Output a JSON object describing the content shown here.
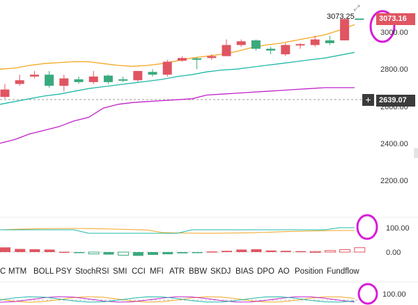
{
  "chart_data": {
    "type": "candlestick",
    "price_axis_ticks": [
      "3000.00",
      "2800.00",
      "2600.00",
      "2400.00",
      "2200.00"
    ],
    "last_price": "3073.16",
    "hover_price": "3073.25",
    "crosshair_price": "2639.07",
    "macd_axis_ticks": [
      "100.00",
      "0.00"
    ],
    "osc_axis_ticks": [
      "100.00"
    ],
    "candles": [
      {
        "o": 2690,
        "h": 2720,
        "l": 2640,
        "c": 2650
      },
      {
        "o": 2740,
        "h": 2770,
        "l": 2710,
        "c": 2720
      },
      {
        "o": 2770,
        "h": 2790,
        "l": 2750,
        "c": 2760
      },
      {
        "o": 2710,
        "h": 2790,
        "l": 2700,
        "c": 2770
      },
      {
        "o": 2750,
        "h": 2770,
        "l": 2680,
        "c": 2710
      },
      {
        "o": 2730,
        "h": 2760,
        "l": 2720,
        "c": 2745
      },
      {
        "o": 2760,
        "h": 2790,
        "l": 2720,
        "c": 2730
      },
      {
        "o": 2730,
        "h": 2770,
        "l": 2720,
        "c": 2765
      },
      {
        "o": 2740,
        "h": 2760,
        "l": 2730,
        "c": 2745
      },
      {
        "o": 2790,
        "h": 2790,
        "l": 2730,
        "c": 2740
      },
      {
        "o": 2770,
        "h": 2800,
        "l": 2760,
        "c": 2785
      },
      {
        "o": 2840,
        "h": 2850,
        "l": 2760,
        "c": 2770
      },
      {
        "o": 2860,
        "h": 2870,
        "l": 2840,
        "c": 2845
      },
      {
        "o": 2855,
        "h": 2865,
        "l": 2800,
        "c": 2858
      },
      {
        "o": 2870,
        "h": 2880,
        "l": 2850,
        "c": 2860
      },
      {
        "o": 2930,
        "h": 2960,
        "l": 2870,
        "c": 2870
      },
      {
        "o": 2950,
        "h": 2960,
        "l": 2920,
        "c": 2930
      },
      {
        "o": 2910,
        "h": 2960,
        "l": 2900,
        "c": 2955
      },
      {
        "o": 2900,
        "h": 2920,
        "l": 2880,
        "c": 2910
      },
      {
        "o": 2930,
        "h": 2940,
        "l": 2870,
        "c": 2880
      },
      {
        "o": 2935,
        "h": 2940,
        "l": 2910,
        "c": 2928
      },
      {
        "o": 2960,
        "h": 2980,
        "l": 2920,
        "c": 2930
      },
      {
        "o": 2940,
        "h": 2980,
        "l": 2930,
        "c": 2955
      },
      {
        "o": 3070,
        "h": 3075,
        "l": 2955,
        "c": 2955
      },
      {
        "o": 3073,
        "h": 3073,
        "l": 3073,
        "c": 3073
      }
    ],
    "ma_orange": [
      2800,
      2805,
      2820,
      2830,
      2835,
      2840,
      2840,
      2830,
      2820,
      2815,
      2820,
      2830,
      2845,
      2860,
      2870,
      2880,
      2895,
      2915,
      2930,
      2940,
      2955,
      2970,
      2985,
      3010,
      3040
    ],
    "ma_teal": [
      2610,
      2625,
      2640,
      2655,
      2665,
      2680,
      2695,
      2705,
      2715,
      2725,
      2735,
      2745,
      2760,
      2770,
      2785,
      2795,
      2800,
      2810,
      2820,
      2830,
      2840,
      2850,
      2860,
      2875,
      2890
    ],
    "ma_magenta": [
      2400,
      2420,
      2450,
      2470,
      2490,
      2520,
      2540,
      2590,
      2610,
      2620,
      2625,
      2630,
      2635,
      2640,
      2660,
      2665,
      2670,
      2675,
      2680,
      2685,
      2690,
      2695,
      2700,
      2700,
      2700
    ],
    "macd_hist": [
      15,
      10,
      9,
      8,
      1,
      -3,
      -6,
      -8,
      -10,
      -12,
      -9,
      -7,
      -4,
      -2,
      2,
      4,
      8,
      9,
      5,
      4,
      3,
      2,
      5,
      8,
      14
    ]
  },
  "indicator_tabs": [
    "C",
    "MTM",
    "BOLL",
    "PSY",
    "StochRSI",
    "SMI",
    "CCI",
    "MFI",
    "ATR",
    "BBW",
    "SKDJ",
    "BIAS",
    "DPO",
    "AO",
    "Position",
    "Fundflow"
  ],
  "icons": {
    "expand": "expand-icon",
    "crosshair_add": "plus-icon"
  },
  "colors": {
    "up": "#3aaa7e",
    "down": "#e05561",
    "ma_orange": "#f5a623",
    "ma_teal": "#1fb8a8",
    "ma_magenta": "#c020c8",
    "highlight_circle": "#d81bd8"
  }
}
